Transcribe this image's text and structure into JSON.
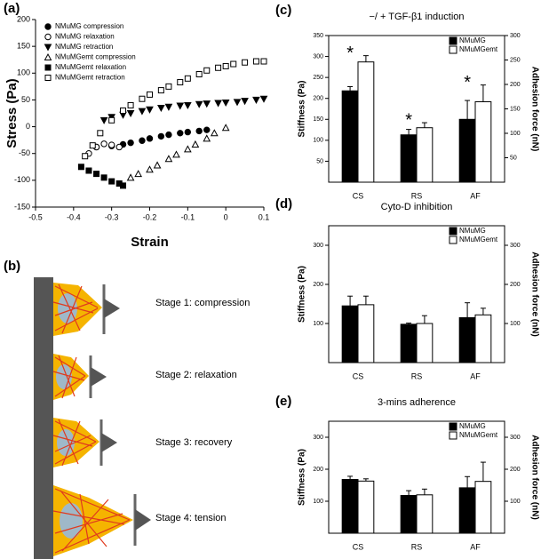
{
  "chart_data": [
    {
      "type": "scatter",
      "label": "(a)",
      "xlabel": "Strain",
      "ylabel": "Stress (Pa)",
      "xlim": [
        -0.5,
        0.1
      ],
      "xticks": [
        -0.5,
        -0.4,
        -0.3,
        -0.2,
        -0.1,
        0,
        0.1
      ],
      "ylim": [
        -150,
        200
      ],
      "yticks": [
        -150,
        -100,
        -50,
        0,
        50,
        100,
        150,
        200
      ],
      "legend": "upper left",
      "series": [
        {
          "name": "NMuMG compression",
          "marker": "circle",
          "filled": true,
          "color": "#000000",
          "x": [
            -0.34,
            -0.3,
            -0.27,
            -0.25,
            -0.22,
            -0.2,
            -0.17,
            -0.15,
            -0.12,
            -0.1,
            -0.07,
            -0.05
          ],
          "values": [
            -38,
            -36,
            -33,
            -30,
            -26,
            -22,
            -18,
            -15,
            -12,
            -10,
            -8,
            -6
          ]
        },
        {
          "name": "NMuMG relaxation",
          "marker": "circle",
          "filled": false,
          "color": "#000000",
          "x": [
            -0.36,
            -0.34,
            -0.32,
            -0.3,
            -0.28
          ],
          "values": [
            -50,
            -38,
            -32,
            -34,
            -38
          ]
        },
        {
          "name": "NMuMG retraction",
          "marker": "triangle-down",
          "filled": true,
          "color": "#000000",
          "x": [
            -0.32,
            -0.3,
            -0.27,
            -0.25,
            -0.22,
            -0.2,
            -0.17,
            -0.15,
            -0.12,
            -0.1,
            -0.07,
            -0.05,
            -0.02,
            0,
            0.03,
            0.05,
            0.08,
            0.1
          ],
          "values": [
            12,
            18,
            22,
            25,
            29,
            32,
            35,
            37,
            39,
            40,
            42,
            43,
            44,
            45,
            46,
            48,
            50,
            52
          ]
        },
        {
          "name": "NMuMGemt compression",
          "marker": "triangle-up",
          "filled": false,
          "color": "#000000",
          "x": [
            -0.25,
            -0.23,
            -0.2,
            -0.18,
            -0.15,
            -0.13,
            -0.1,
            -0.08,
            -0.05,
            -0.03,
            0
          ],
          "values": [
            -95,
            -88,
            -80,
            -72,
            -60,
            -52,
            -42,
            -33,
            -22,
            -12,
            -2
          ]
        },
        {
          "name": "NMuMGemt relaxation",
          "marker": "square",
          "filled": true,
          "color": "#000000",
          "x": [
            -0.38,
            -0.36,
            -0.34,
            -0.32,
            -0.3,
            -0.28,
            -0.27
          ],
          "values": [
            -75,
            -82,
            -88,
            -95,
            -102,
            -106,
            -110
          ]
        },
        {
          "name": "NMuMGemt retraction",
          "marker": "square",
          "filled": false,
          "color": "#000000",
          "x": [
            -0.37,
            -0.35,
            -0.33,
            -0.3,
            -0.27,
            -0.25,
            -0.22,
            -0.2,
            -0.17,
            -0.15,
            -0.12,
            -0.1,
            -0.07,
            -0.05,
            -0.02,
            0,
            0.02,
            0.05,
            0.08,
            0.1
          ],
          "values": [
            -55,
            -35,
            -12,
            12,
            30,
            40,
            52,
            60,
            68,
            75,
            83,
            90,
            98,
            105,
            110,
            113,
            117,
            120,
            122,
            122
          ]
        }
      ]
    },
    {
      "type": "bar",
      "label": "(c)",
      "title": "−/ + TGF-β1 induction",
      "ylabel": "Stiffness (Pa)",
      "y2label": "Adhesion force (nN)",
      "categories": [
        "CS",
        "RS",
        "AF"
      ],
      "legend": "upper right",
      "ylim": [
        0,
        350
      ],
      "yticks": [
        50,
        100,
        150,
        200,
        250,
        300,
        350
      ],
      "y2lim": [
        0,
        300
      ],
      "y2ticks": [
        50,
        100,
        150,
        200,
        250,
        300
      ],
      "annotations": [
        "*",
        "*",
        "*"
      ],
      "series": [
        {
          "name": "NMuMG",
          "color": "#000000",
          "values": [
            218,
            113,
            150
          ],
          "errors": [
            10,
            13,
            45
          ]
        },
        {
          "name": "NMuMGemt",
          "color": "#ffffff",
          "values": [
            287,
            130,
            192
          ],
          "errors": [
            15,
            12,
            40
          ]
        }
      ]
    },
    {
      "type": "bar",
      "label": "(d)",
      "title": "Cyto-D inhibition",
      "ylabel": "Stiffness (Pa)",
      "y2label": "Adhesion force (nN)",
      "categories": [
        "CS",
        "RS",
        "AF"
      ],
      "legend": "upper right",
      "ylim": [
        0,
        350
      ],
      "yticks": [
        100,
        200,
        300
      ],
      "y2lim": [
        0,
        350
      ],
      "y2ticks": [
        100,
        200,
        300
      ],
      "series": [
        {
          "name": "NMuMG",
          "color": "#000000",
          "values": [
            145,
            98,
            115
          ],
          "errors": [
            25,
            3,
            38
          ]
        },
        {
          "name": "NMuMGemt",
          "color": "#ffffff",
          "values": [
            148,
            100,
            122
          ],
          "errors": [
            22,
            20,
            17
          ]
        }
      ]
    },
    {
      "type": "bar",
      "label": "(e)",
      "title": "3-mins adherence",
      "ylabel": "Stiffness (Pa)",
      "y2label": "Adhesion force (nN)",
      "categories": [
        "CS",
        "RS",
        "AF"
      ],
      "legend": "upper right",
      "ylim": [
        0,
        350
      ],
      "yticks": [
        100,
        200,
        300
      ],
      "y2lim": [
        0,
        350
      ],
      "y2ticks": [
        100,
        200,
        300
      ],
      "series": [
        {
          "name": "NMuMG",
          "color": "#000000",
          "values": [
            168,
            118,
            142
          ],
          "errors": [
            10,
            15,
            35
          ]
        },
        {
          "name": "NMuMGemt",
          "color": "#ffffff",
          "values": [
            163,
            120,
            162
          ],
          "errors": [
            7,
            18,
            60
          ]
        }
      ]
    }
  ],
  "diagram": {
    "label": "(b)",
    "stages": [
      "Stage 1: compression",
      "Stage 2: relaxation",
      "Stage 3: recovery",
      "Stage 4: tension"
    ]
  }
}
